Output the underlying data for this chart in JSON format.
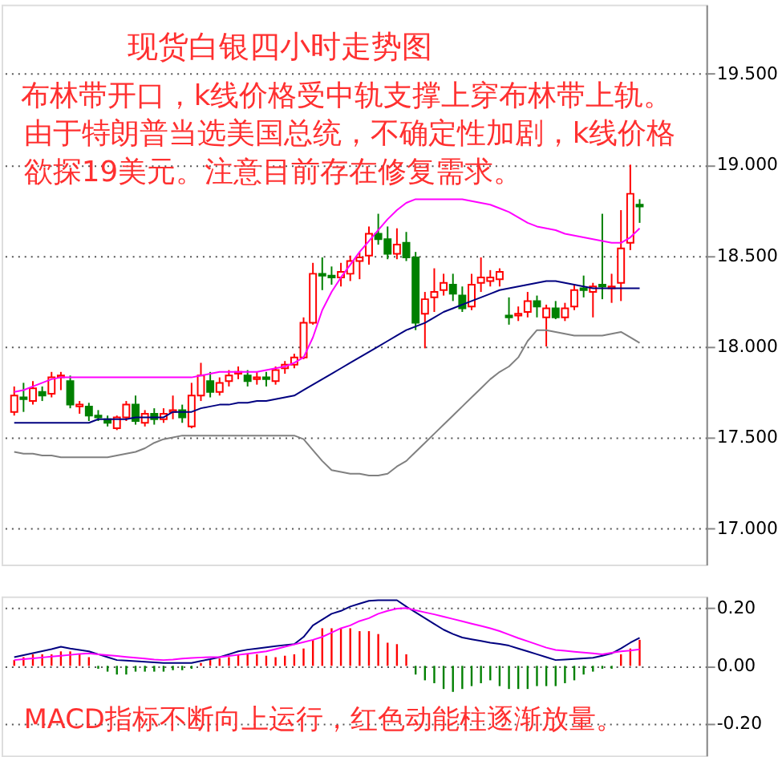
{
  "chart_data": [
    {
      "type": "candlestick",
      "title": "现货白银四小时走势图",
      "annotations": [
        "布林带开口，k线价格受中轨支撑上穿布林带上轨。",
        "由于特朗普当选美国总统，不确定性加剧，k线价格",
        "欲探19美元。注意目前存在修复需求。"
      ],
      "categories": [
        null,
        null,
        null,
        null,
        null,
        null,
        null,
        null,
        null,
        null,
        null,
        null,
        null,
        null,
        null,
        null,
        null,
        null,
        null,
        null,
        null,
        null,
        null,
        null,
        null,
        null,
        null,
        null,
        null,
        null,
        null,
        null,
        null,
        null,
        null,
        null,
        null,
        null,
        null,
        null,
        null,
        null,
        null,
        null,
        null,
        null,
        null,
        null,
        null,
        null,
        null,
        null,
        null,
        null,
        null,
        null,
        null,
        null,
        null,
        null,
        null,
        null,
        null,
        null,
        null,
        null,
        null,
        null
      ],
      "ohlc": [
        [
          17.64,
          17.78,
          17.62,
          17.73
        ],
        [
          17.72,
          17.8,
          17.64,
          17.71
        ],
        [
          17.7,
          17.81,
          17.68,
          17.77
        ],
        [
          17.75,
          17.78,
          17.7,
          17.73
        ],
        [
          17.74,
          17.86,
          17.72,
          17.83
        ],
        [
          17.83,
          17.86,
          17.76,
          17.84
        ],
        [
          17.81,
          17.84,
          17.66,
          17.68
        ],
        [
          17.67,
          17.7,
          17.63,
          17.68
        ],
        [
          17.67,
          17.69,
          17.59,
          17.62
        ],
        [
          17.62,
          17.65,
          17.59,
          17.61
        ],
        [
          17.6,
          17.62,
          17.56,
          17.58
        ],
        [
          17.55,
          17.62,
          17.54,
          17.61
        ],
        [
          17.61,
          17.7,
          17.59,
          17.68
        ],
        [
          17.68,
          17.73,
          17.57,
          17.59
        ],
        [
          17.58,
          17.65,
          17.56,
          17.63
        ],
        [
          17.63,
          17.66,
          17.57,
          17.6
        ],
        [
          17.6,
          17.66,
          17.58,
          17.63
        ],
        [
          17.64,
          17.73,
          17.6,
          17.65
        ],
        [
          17.65,
          17.68,
          17.58,
          17.61
        ],
        [
          17.56,
          17.8,
          17.55,
          17.73
        ],
        [
          17.73,
          17.91,
          17.7,
          17.84
        ],
        [
          17.81,
          17.86,
          17.72,
          17.75
        ],
        [
          17.75,
          17.83,
          17.73,
          17.8
        ],
        [
          17.81,
          17.87,
          17.78,
          17.84
        ],
        [
          17.85,
          17.89,
          17.82,
          17.86
        ],
        [
          17.84,
          17.87,
          17.78,
          17.81
        ],
        [
          17.82,
          17.86,
          17.79,
          17.83
        ],
        [
          17.83,
          17.86,
          17.78,
          17.82
        ],
        [
          17.81,
          17.89,
          17.79,
          17.87
        ],
        [
          17.88,
          17.92,
          17.85,
          17.9
        ],
        [
          17.9,
          17.96,
          17.88,
          17.94
        ],
        [
          17.94,
          18.16,
          17.93,
          18.13
        ],
        [
          18.13,
          18.46,
          18.12,
          18.4
        ],
        [
          18.4,
          18.49,
          18.31,
          18.39
        ],
        [
          18.39,
          18.44,
          18.34,
          18.38
        ],
        [
          18.38,
          18.46,
          18.33,
          18.41
        ],
        [
          18.4,
          18.5,
          18.36,
          18.47
        ],
        [
          18.47,
          18.52,
          18.37,
          18.49
        ],
        [
          18.5,
          18.66,
          18.45,
          18.62
        ],
        [
          18.62,
          18.73,
          18.56,
          18.59
        ],
        [
          18.59,
          18.66,
          18.48,
          18.51
        ],
        [
          18.51,
          18.65,
          18.48,
          18.56
        ],
        [
          18.57,
          18.63,
          18.47,
          18.49
        ],
        [
          18.49,
          18.52,
          18.09,
          18.13
        ],
        [
          18.18,
          18.3,
          17.99,
          18.26
        ],
        [
          18.27,
          18.43,
          18.19,
          18.3
        ],
        [
          18.31,
          18.4,
          18.28,
          18.35
        ],
        [
          18.34,
          18.4,
          18.25,
          18.29
        ],
        [
          18.28,
          18.33,
          18.19,
          18.21
        ],
        [
          18.22,
          18.4,
          18.2,
          18.34
        ],
        [
          18.35,
          18.49,
          18.3,
          18.38
        ],
        [
          18.36,
          18.42,
          18.33,
          18.38
        ],
        [
          18.37,
          18.43,
          18.33,
          18.41
        ],
        [
          18.17,
          18.27,
          18.12,
          18.16
        ],
        [
          18.17,
          18.22,
          18.14,
          18.18
        ],
        [
          18.19,
          18.3,
          18.16,
          18.25
        ],
        [
          18.25,
          18.28,
          18.16,
          18.22
        ],
        [
          18.16,
          18.23,
          18.0,
          18.21
        ],
        [
          18.21,
          18.25,
          18.15,
          18.16
        ],
        [
          18.16,
          18.24,
          18.14,
          18.21
        ],
        [
          18.22,
          18.34,
          18.2,
          18.31
        ],
        [
          18.32,
          18.39,
          18.27,
          18.31
        ],
        [
          18.3,
          18.35,
          18.16,
          18.33
        ],
        [
          18.34,
          18.73,
          18.26,
          18.33
        ],
        [
          18.32,
          18.4,
          18.24,
          18.33
        ],
        [
          18.35,
          18.75,
          18.25,
          18.54
        ],
        [
          18.57,
          19.0,
          18.53,
          18.84
        ],
        [
          18.78,
          18.81,
          18.68,
          18.77
        ]
      ],
      "colors": [
        "#ff0000",
        "#008000",
        "#ff0000",
        "#008000",
        "#ff0000",
        "#ff0000",
        "#008000",
        "#ff0000",
        "#008000",
        "#008000",
        "#008000",
        "#ff0000",
        "#ff0000",
        "#008000",
        "#ff0000",
        "#008000",
        "#ff0000",
        "#ff0000",
        "#008000",
        "#ff0000",
        "#ff0000",
        "#008000",
        "#ff0000",
        "#ff0000",
        "#ff0000",
        "#008000",
        "#ff0000",
        "#008000",
        "#ff0000",
        "#ff0000",
        "#ff0000",
        "#ff0000",
        "#ff0000",
        "#008000",
        "#008000",
        "#ff0000",
        "#ff0000",
        "#ff0000",
        "#ff0000",
        "#008000",
        "#008000",
        "#ff0000",
        "#008000",
        "#008000",
        "#ff0000",
        "#ff0000",
        "#ff0000",
        "#008000",
        "#008000",
        "#ff0000",
        "#ff0000",
        "#ff0000",
        "#ff0000",
        "#008000",
        "#ff0000",
        "#ff0000",
        "#008000",
        "#ff0000",
        "#008000",
        "#ff0000",
        "#ff0000",
        "#008000",
        "#ff0000",
        "#008000",
        "#ff0000",
        "#ff0000",
        "#ff0000",
        "#008000"
      ],
      "series": [
        {
          "type": "line",
          "color": "#ff00ff",
          "values": [
            17.75,
            17.76,
            17.78,
            17.8,
            17.82,
            17.83,
            17.83,
            17.83,
            17.83,
            17.83,
            17.83,
            17.83,
            17.83,
            17.83,
            17.83,
            17.83,
            17.83,
            17.83,
            17.83,
            17.83,
            17.84,
            17.85,
            17.86,
            17.86,
            17.86,
            17.86,
            17.86,
            17.87,
            17.88,
            17.89,
            17.91,
            17.94,
            18.05,
            18.2,
            18.3,
            18.38,
            18.45,
            18.52,
            18.58,
            18.64,
            18.7,
            18.75,
            18.79,
            18.81,
            18.81,
            18.81,
            18.81,
            18.81,
            18.81,
            18.8,
            18.79,
            18.78,
            18.76,
            18.74,
            18.71,
            18.68,
            18.66,
            18.65,
            18.64,
            18.62,
            18.61,
            18.6,
            18.59,
            18.58,
            18.57,
            18.57,
            18.6,
            18.65
          ]
        },
        {
          "type": "line",
          "color": "#000080",
          "values": [
            17.58,
            17.58,
            17.58,
            17.58,
            17.58,
            17.58,
            17.58,
            17.58,
            17.58,
            17.6,
            17.6,
            17.6,
            17.6,
            17.61,
            17.61,
            17.61,
            17.61,
            17.64,
            17.64,
            17.64,
            17.66,
            17.67,
            17.68,
            17.68,
            17.69,
            17.69,
            17.7,
            17.7,
            17.71,
            17.72,
            17.73,
            17.76,
            17.79,
            17.82,
            17.85,
            17.88,
            17.91,
            17.94,
            17.97,
            18.0,
            18.03,
            18.06,
            18.09,
            18.11,
            18.13,
            18.16,
            18.19,
            18.21,
            18.23,
            18.25,
            18.27,
            18.29,
            18.31,
            18.32,
            18.33,
            18.34,
            18.35,
            18.36,
            18.36,
            18.35,
            18.34,
            18.33,
            18.32,
            18.32,
            18.32,
            18.32,
            18.32,
            18.32
          ]
        },
        {
          "type": "line",
          "color": "#808080",
          "values": [
            17.42,
            17.41,
            17.41,
            17.4,
            17.4,
            17.39,
            17.39,
            17.39,
            17.39,
            17.39,
            17.39,
            17.4,
            17.41,
            17.42,
            17.44,
            17.47,
            17.49,
            17.5,
            17.51,
            17.51,
            17.51,
            17.51,
            17.51,
            17.51,
            17.51,
            17.51,
            17.51,
            17.51,
            17.51,
            17.51,
            17.51,
            17.49,
            17.43,
            17.37,
            17.32,
            17.31,
            17.3,
            17.3,
            17.29,
            17.29,
            17.3,
            17.34,
            17.37,
            17.42,
            17.47,
            17.52,
            17.57,
            17.62,
            17.67,
            17.72,
            17.77,
            17.82,
            17.86,
            17.89,
            17.94,
            18.03,
            18.09,
            18.09,
            18.08,
            18.07,
            18.06,
            18.06,
            18.06,
            18.06,
            18.07,
            18.08,
            18.05,
            18.02
          ]
        }
      ],
      "ylim": [
        16.8,
        19.88
      ],
      "yticks": [
        {
          "value": 17,
          "label": "17.000"
        },
        {
          "value": 17.5,
          "label": "17.500"
        },
        {
          "value": 18,
          "label": "18.000"
        },
        {
          "value": 18.5,
          "label": "18.500"
        },
        {
          "value": 19,
          "label": "19.000"
        },
        {
          "value": 19.5,
          "label": "19.500"
        }
      ],
      "grid": "y",
      "tick_labels": "y"
    },
    {
      "type": "bar",
      "annotations": [
        "MACD指标不断向上运行，红色动能柱逐渐放量。"
      ],
      "categories": [
        null,
        null,
        null,
        null,
        null,
        null,
        null,
        null,
        null,
        null,
        null,
        null,
        null,
        null,
        null,
        null,
        null,
        null,
        null,
        null,
        null,
        null,
        null,
        null,
        null,
        null,
        null,
        null,
        null,
        null,
        null,
        null,
        null,
        null,
        null,
        null,
        null,
        null,
        null,
        null,
        null,
        null,
        null,
        null,
        null,
        null,
        null,
        null,
        null,
        null,
        null,
        null,
        null,
        null,
        null,
        null,
        null,
        null,
        null,
        null,
        null,
        null,
        null,
        null,
        null,
        null,
        null,
        null
      ],
      "series": [
        {
          "type": "bar",
          "values": [
            0.02,
            0.03,
            0.04,
            0.04,
            0.04,
            0.05,
            0.05,
            0.04,
            0.03,
            -0.01,
            -0.02,
            -0.03,
            -0.03,
            -0.02,
            -0.02,
            -0.02,
            -0.02,
            -0.015,
            -0.015,
            -0.01,
            0.01,
            0.02,
            0.025,
            0.03,
            0.04,
            0.04,
            0.04,
            0.035,
            0.03,
            0.035,
            0.04,
            0.06,
            0.09,
            0.13,
            0.13,
            0.13,
            0.13,
            0.12,
            0.12,
            0.11,
            0.08,
            0.075,
            0.04,
            -0.03,
            -0.05,
            -0.06,
            -0.08,
            -0.09,
            -0.08,
            -0.07,
            -0.06,
            -0.05,
            -0.07,
            -0.08,
            -0.08,
            -0.08,
            -0.07,
            -0.07,
            -0.07,
            -0.06,
            -0.05,
            -0.03,
            -0.02,
            -0.01,
            -0.01,
            0.04,
            0.06,
            0.09
          ],
          "colors": [
            "#ff0000",
            "#ff0000",
            "#ff0000",
            "#ff0000",
            "#ff0000",
            "#ff0000",
            "#ff0000",
            "#ff0000",
            "#ff0000",
            "#008000",
            "#008000",
            "#008000",
            "#008000",
            "#008000",
            "#008000",
            "#008000",
            "#008000",
            "#008000",
            "#008000",
            "#008000",
            "#ff0000",
            "#ff0000",
            "#ff0000",
            "#ff0000",
            "#ff0000",
            "#ff0000",
            "#ff0000",
            "#ff0000",
            "#ff0000",
            "#ff0000",
            "#ff0000",
            "#ff0000",
            "#ff0000",
            "#ff0000",
            "#ff0000",
            "#ff0000",
            "#ff0000",
            "#ff0000",
            "#ff0000",
            "#ff0000",
            "#ff0000",
            "#ff0000",
            "#ff0000",
            "#008000",
            "#008000",
            "#008000",
            "#008000",
            "#008000",
            "#008000",
            "#008000",
            "#008000",
            "#008000",
            "#008000",
            "#008000",
            "#008000",
            "#008000",
            "#008000",
            "#008000",
            "#008000",
            "#008000",
            "#008000",
            "#008000",
            "#008000",
            "#008000",
            "#008000",
            "#ff0000",
            "#ff0000",
            "#ff0000"
          ]
        },
        {
          "type": "line",
          "color": "#000080",
          "values": [
            0.03,
            0.037,
            0.044,
            0.051,
            0.058,
            0.066,
            0.06,
            0.055,
            0.05,
            0.04,
            0.03,
            0.02,
            0.018,
            0.016,
            0.014,
            0.012,
            0.01,
            0.01,
            0.01,
            0.01,
            0.017,
            0.023,
            0.03,
            0.04,
            0.05,
            0.056,
            0.06,
            0.064,
            0.068,
            0.072,
            0.075,
            0.1,
            0.14,
            0.16,
            0.18,
            0.19,
            0.205,
            0.215,
            0.225,
            0.227,
            0.227,
            0.227,
            0.205,
            0.185,
            0.165,
            0.145,
            0.125,
            0.11,
            0.098,
            0.092,
            0.086,
            0.08,
            0.076,
            0.07,
            0.06,
            0.05,
            0.04,
            0.03,
            0.02,
            0.022,
            0.024,
            0.026,
            0.028,
            0.035,
            0.043,
            0.06,
            0.08,
            0.097
          ]
        },
        {
          "type": "line",
          "color": "#ff00ff",
          "values": [
            0.02,
            0.023,
            0.026,
            0.029,
            0.032,
            0.035,
            0.038,
            0.041,
            0.043,
            0.04,
            0.037,
            0.034,
            0.031,
            0.028,
            0.025,
            0.022,
            0.02,
            0.022,
            0.025,
            0.027,
            0.029,
            0.03,
            0.03,
            0.034,
            0.038,
            0.042,
            0.046,
            0.05,
            0.058,
            0.066,
            0.074,
            0.082,
            0.09,
            0.1,
            0.115,
            0.13,
            0.14,
            0.155,
            0.165,
            0.18,
            0.19,
            0.198,
            0.2,
            0.192,
            0.185,
            0.178,
            0.17,
            0.162,
            0.154,
            0.146,
            0.138,
            0.13,
            0.12,
            0.108,
            0.096,
            0.085,
            0.074,
            0.063,
            0.055,
            0.052,
            0.049,
            0.046,
            0.043,
            0.04,
            0.045,
            0.05,
            0.053,
            0.057
          ]
        }
      ],
      "ylim": [
        -0.31,
        0.24
      ],
      "yticks": [
        {
          "value": -0.2,
          "label": "-0.20"
        },
        {
          "value": 0,
          "label": "0.00"
        },
        {
          "value": 0.2,
          "label": "0.20"
        }
      ],
      "grid": "y",
      "tick_labels": "y"
    }
  ]
}
